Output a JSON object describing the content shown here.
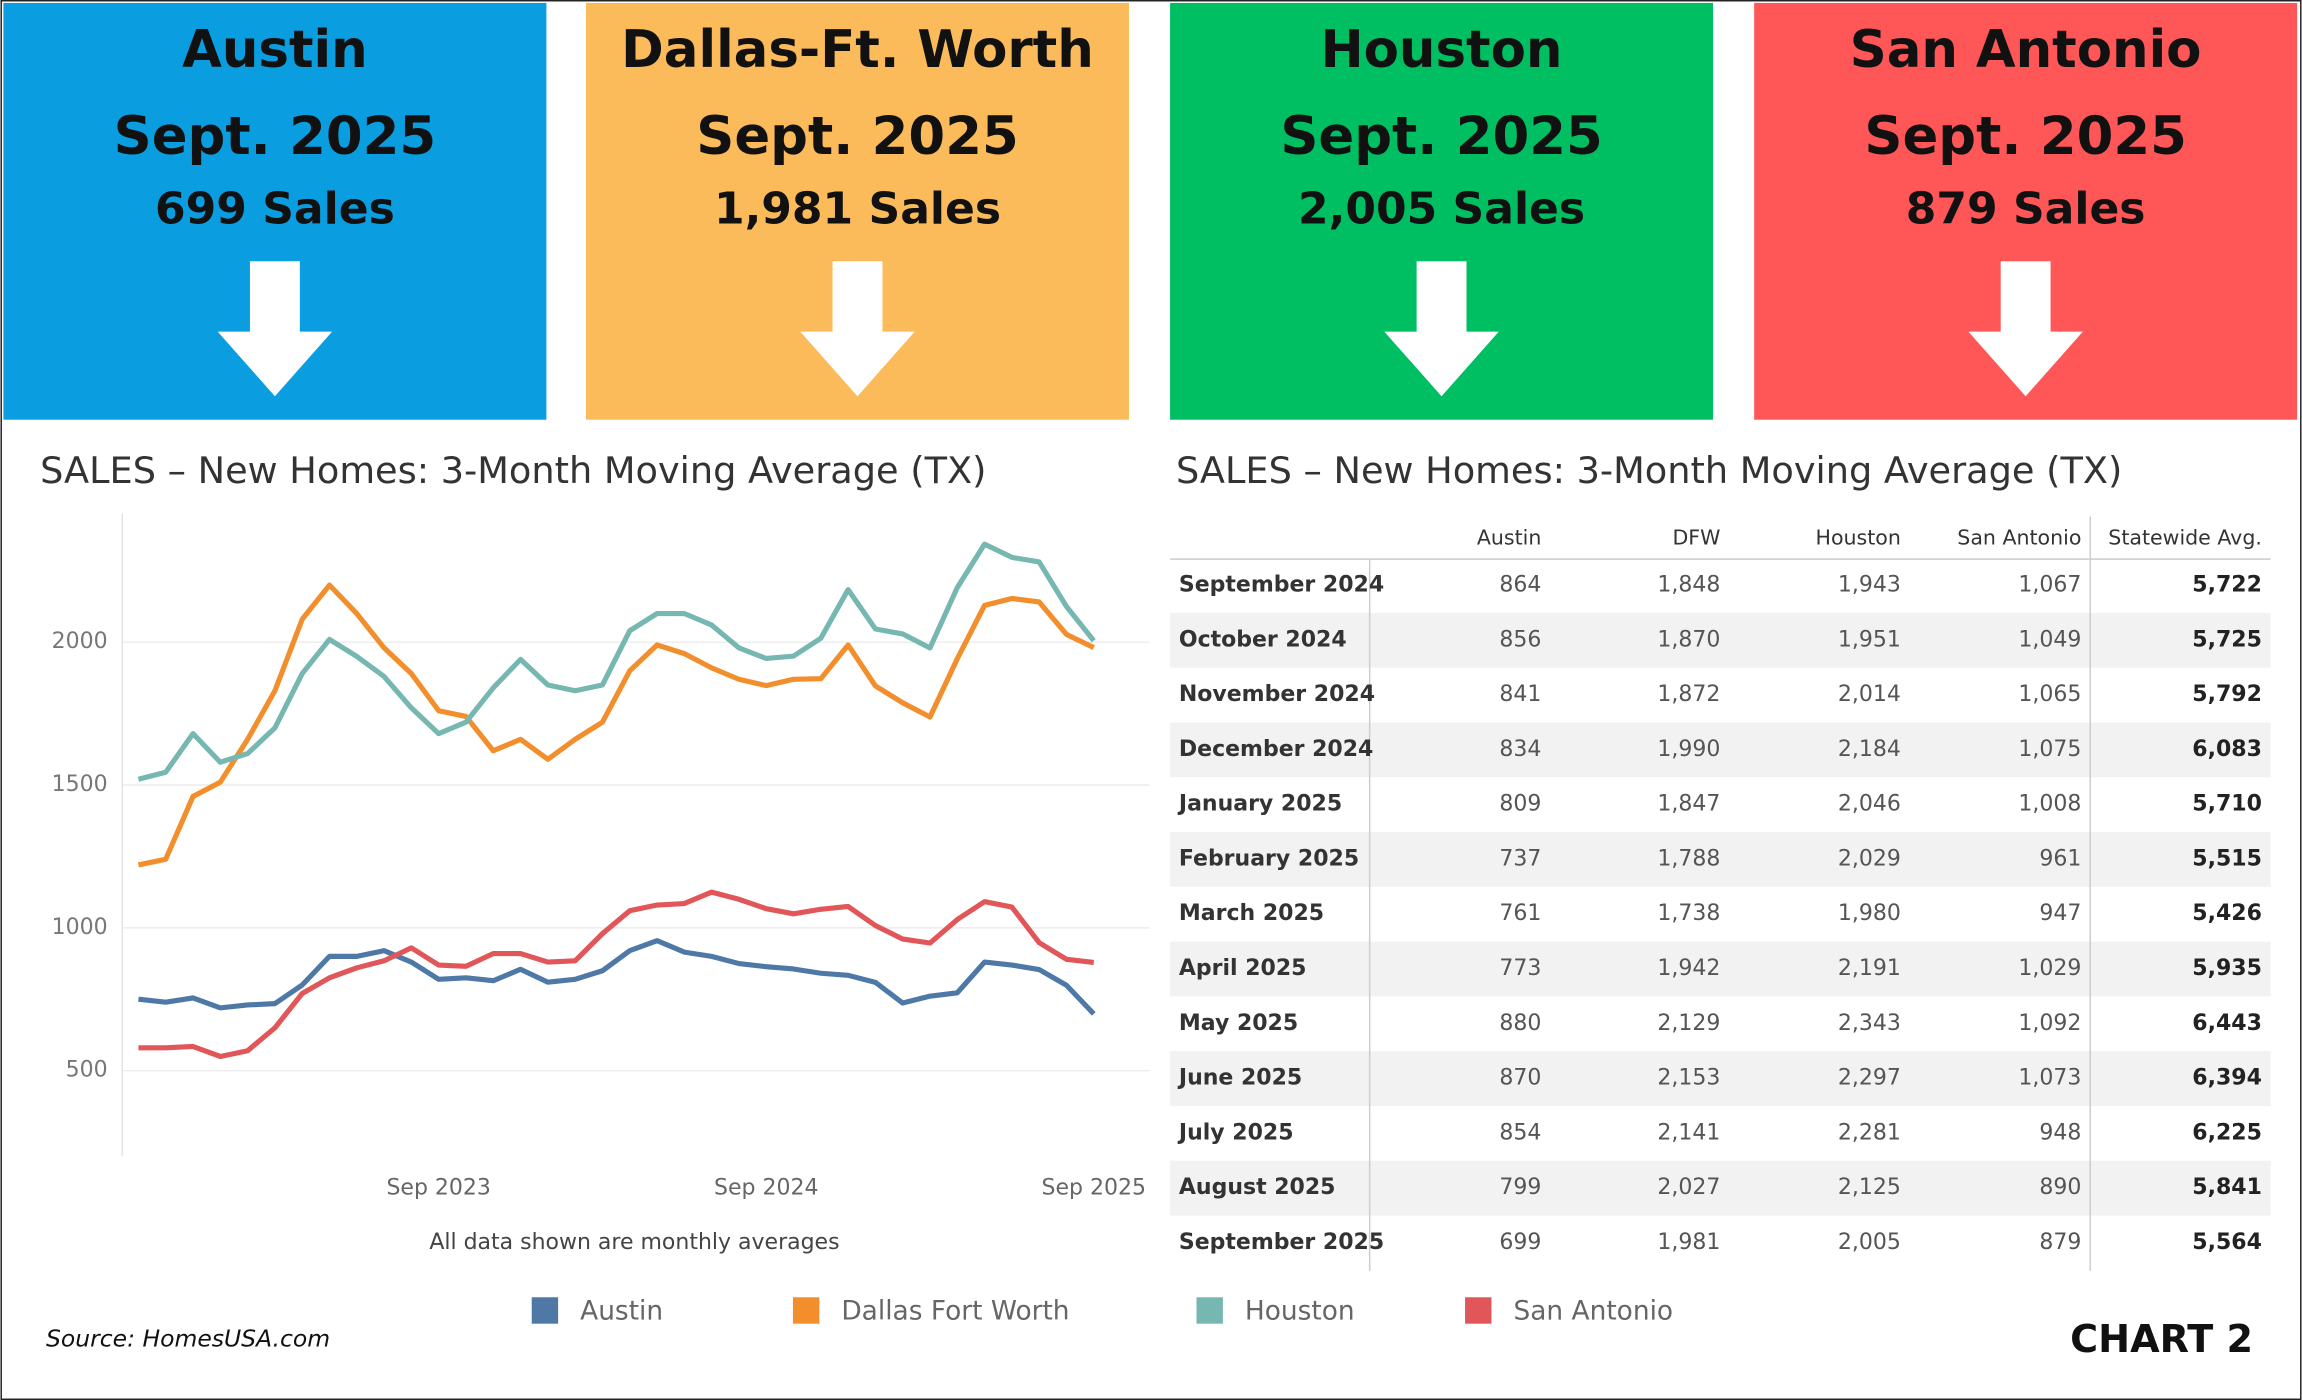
{
  "cards": [
    {
      "city": "Austin",
      "date": "Sept. 2025",
      "sales": "699 Sales"
    },
    {
      "city": "Dallas-Ft. Worth",
      "date": "Sept. 2025",
      "sales": "1,981 Sales"
    },
    {
      "city": "Houston",
      "date": "Sept. 2025",
      "sales": "2,005 Sales"
    },
    {
      "city": "San Antonio",
      "date": "Sept. 2025",
      "sales": "879 Sales"
    }
  ],
  "chart_data": {
    "type": "line",
    "title": "SALES – New Homes: 3-Month Moving Average (TX)",
    "note": "All data shown are monthly averages",
    "categories": [
      null,
      null,
      null,
      null,
      null,
      null,
      null,
      null,
      null,
      null,
      null,
      "Sep 2023",
      null,
      null,
      null,
      null,
      null,
      null,
      null,
      null,
      null,
      null,
      null,
      "Sep 2024",
      null,
      null,
      null,
      null,
      null,
      null,
      null,
      null,
      null,
      null,
      null,
      "Sep 2025"
    ],
    "ylim": [
      200,
      2450
    ],
    "yticks": [
      500,
      1000,
      1500,
      2000
    ],
    "grid": true,
    "series": [
      {
        "name": "Austin",
        "color": "#4e79a7",
        "values": [
          750,
          740,
          755,
          720,
          730,
          735,
          800,
          900,
          900,
          920,
          880,
          820,
          825,
          815,
          855,
          810,
          820,
          850,
          920,
          955,
          915,
          900,
          875,
          864,
          856,
          841,
          834,
          809,
          737,
          761,
          773,
          880,
          870,
          854,
          799,
          699
        ]
      },
      {
        "name": "Dallas Fort Worth",
        "color": "#f28e2b",
        "values": [
          1220,
          1240,
          1460,
          1510,
          1660,
          1830,
          2080,
          2200,
          2100,
          1980,
          1890,
          1760,
          1740,
          1620,
          1660,
          1590,
          1660,
          1720,
          1900,
          1990,
          1960,
          1910,
          1870,
          1848,
          1870,
          1872,
          1990,
          1847,
          1788,
          1738,
          1942,
          2129,
          2153,
          2141,
          2027,
          1981
        ]
      },
      {
        "name": "Houston",
        "color": "#76b7b2",
        "values": [
          1520,
          1545,
          1680,
          1580,
          1610,
          1700,
          1890,
          2010,
          1950,
          1880,
          1770,
          1680,
          1720,
          1840,
          1940,
          1850,
          1830,
          1850,
          2040,
          2100,
          2100,
          2060,
          1980,
          1943,
          1951,
          2014,
          2184,
          2046,
          2029,
          1980,
          2191,
          2343,
          2297,
          2281,
          2125,
          2005
        ]
      },
      {
        "name": "San Antonio",
        "color": "#e15759",
        "values": [
          580,
          580,
          585,
          550,
          570,
          650,
          770,
          825,
          860,
          885,
          930,
          870,
          865,
          910,
          910,
          880,
          885,
          980,
          1060,
          1080,
          1085,
          1125,
          1100,
          1067,
          1049,
          1065,
          1075,
          1008,
          961,
          947,
          1029,
          1092,
          1073,
          948,
          890,
          879
        ]
      }
    ]
  },
  "table": {
    "title": "SALES – New Homes:  3-Month Moving Average (TX)",
    "columns": [
      "Austin",
      "DFW",
      "Houston",
      "San Antonio",
      "Statewide Avg."
    ],
    "rows": [
      [
        "September 2024",
        "864",
        "1,848",
        "1,943",
        "1,067",
        "5,722"
      ],
      [
        "October 2024",
        "856",
        "1,870",
        "1,951",
        "1,049",
        "5,725"
      ],
      [
        "November 2024",
        "841",
        "1,872",
        "2,014",
        "1,065",
        "5,792"
      ],
      [
        "December 2024",
        "834",
        "1,990",
        "2,184",
        "1,075",
        "6,083"
      ],
      [
        "January 2025",
        "809",
        "1,847",
        "2,046",
        "1,008",
        "5,710"
      ],
      [
        "February 2025",
        "737",
        "1,788",
        "2,029",
        "961",
        "5,515"
      ],
      [
        "March 2025",
        "761",
        "1,738",
        "1,980",
        "947",
        "5,426"
      ],
      [
        "April 2025",
        "773",
        "1,942",
        "2,191",
        "1,029",
        "5,935"
      ],
      [
        "May 2025",
        "880",
        "2,129",
        "2,343",
        "1,092",
        "6,443"
      ],
      [
        "June 2025",
        "870",
        "2,153",
        "2,297",
        "1,073",
        "6,394"
      ],
      [
        "July 2025",
        "854",
        "2,141",
        "2,281",
        "948",
        "6,225"
      ],
      [
        "August 2025",
        "799",
        "2,027",
        "2,125",
        "890",
        "5,841"
      ],
      [
        "September 2025",
        "699",
        "1,981",
        "2,005",
        "879",
        "5,564"
      ]
    ]
  },
  "source": "Source: HomesUSA.com",
  "label": "CHART 2"
}
